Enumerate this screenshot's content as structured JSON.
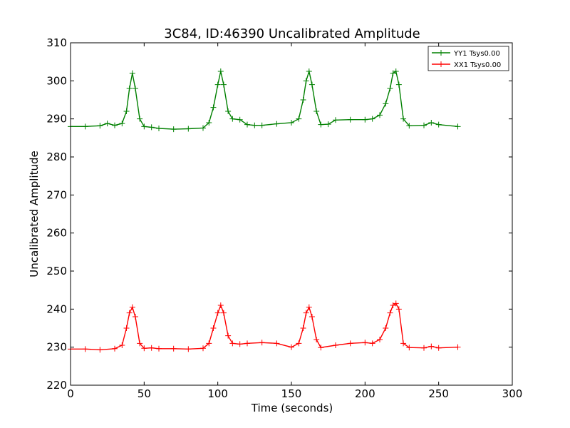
{
  "chart_data": {
    "type": "line",
    "title": "3C84, ID:46390 Uncalibrated Amplitude",
    "xlabel": "Time (seconds)",
    "ylabel": "Uncalibrated Amplitude",
    "xlim": [
      0,
      300
    ],
    "ylim": [
      220,
      310
    ],
    "xticks": [
      0,
      50,
      100,
      150,
      200,
      250,
      300
    ],
    "yticks": [
      220,
      230,
      240,
      250,
      260,
      270,
      280,
      290,
      300,
      310
    ],
    "grid": false,
    "legend_position": "top-right",
    "marker": "+",
    "series": [
      {
        "name": "YY1 Tsys0.00",
        "color": "#008000",
        "x": [
          0,
          10,
          20,
          25,
          30,
          35,
          38,
          40,
          42,
          44,
          47,
          50,
          55,
          60,
          70,
          80,
          90,
          94,
          97,
          100,
          102,
          104,
          107,
          110,
          115,
          120,
          125,
          130,
          140,
          150,
          155,
          158,
          160,
          162,
          164,
          167,
          170,
          175,
          180,
          190,
          200,
          205,
          210,
          214,
          217,
          219,
          221,
          223,
          226,
          230,
          240,
          245,
          250,
          263
        ],
        "y": [
          288,
          288,
          288.2,
          288.8,
          288.3,
          288.8,
          292,
          298,
          302,
          298,
          290,
          288,
          287.8,
          287.5,
          287.3,
          287.4,
          287.6,
          289,
          293,
          299,
          302.5,
          299,
          292,
          290,
          289.8,
          288.5,
          288.3,
          288.3,
          288.7,
          289,
          290,
          295,
          300,
          302.5,
          299,
          292,
          288.5,
          288.6,
          289.7,
          289.8,
          289.8,
          290,
          291,
          294,
          298,
          302,
          302.5,
          299,
          290,
          288.2,
          288.3,
          289,
          288.5,
          288
        ]
      },
      {
        "name": "XX1 Tsys0.00",
        "color": "#ff0000",
        "x": [
          0,
          10,
          20,
          30,
          35,
          38,
          40,
          42,
          44,
          47,
          50,
          55,
          60,
          70,
          80,
          90,
          94,
          97,
          100,
          102,
          104,
          107,
          110,
          115,
          120,
          130,
          140,
          150,
          155,
          158,
          160,
          162,
          164,
          167,
          170,
          180,
          190,
          200,
          205,
          210,
          214,
          217,
          219,
          221,
          223,
          226,
          230,
          240,
          245,
          250,
          263
        ],
        "y": [
          229.5,
          229.5,
          229.3,
          229.6,
          230.5,
          235,
          239,
          240.5,
          238,
          231,
          229.7,
          229.8,
          229.6,
          229.6,
          229.5,
          229.7,
          231,
          235,
          239,
          241,
          239,
          233,
          231,
          230.8,
          231,
          231.2,
          231,
          230,
          231,
          235,
          239,
          240.5,
          238,
          232,
          229.9,
          230.5,
          231,
          231.2,
          231,
          232,
          235,
          239,
          241,
          241.5,
          240,
          231,
          229.9,
          229.8,
          230.2,
          229.8,
          230
        ]
      }
    ]
  }
}
